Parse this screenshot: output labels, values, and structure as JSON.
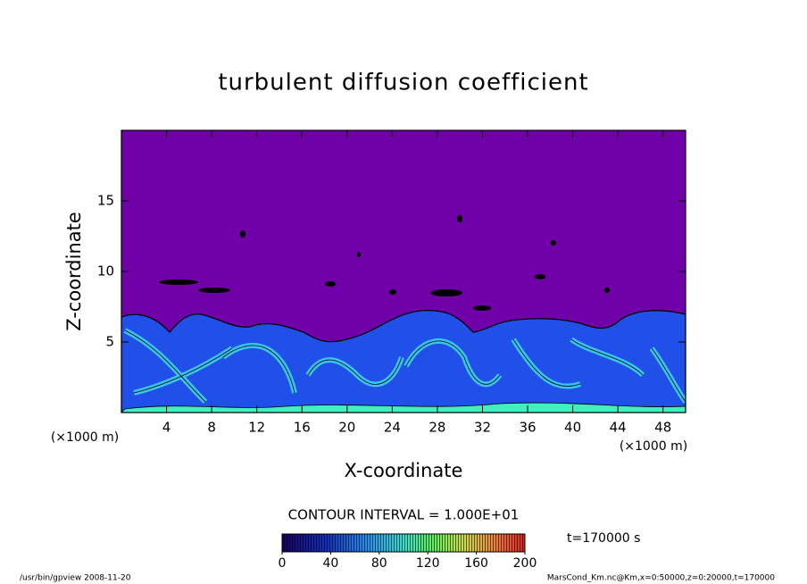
{
  "chart_data": {
    "type": "contour",
    "title": "turbulent diffusion coefficient",
    "x_label": "X-coordinate",
    "y_label": "Z-coordinate",
    "x_unit": "(×1000 m)",
    "xlim": [
      0,
      50
    ],
    "xticks": [
      4,
      8,
      12,
      16,
      20,
      24,
      28,
      32,
      36,
      40,
      44,
      48
    ],
    "ylim": [
      0,
      20
    ],
    "yticks": [
      5,
      10,
      15
    ],
    "contour_interval": "CONTOUR INTERVAL = 1.000E+01",
    "time_label": "t=170000 s",
    "colorbar": {
      "lim": [
        0,
        200
      ],
      "ticks": [
        0,
        40,
        80,
        120,
        160,
        200
      ]
    },
    "footer_left": "/usr/bin/gpview   2008-11-20",
    "footer_right": "MarsCond_Km.nc@Km,x=0:50000,z=0:20000,t=170000"
  }
}
